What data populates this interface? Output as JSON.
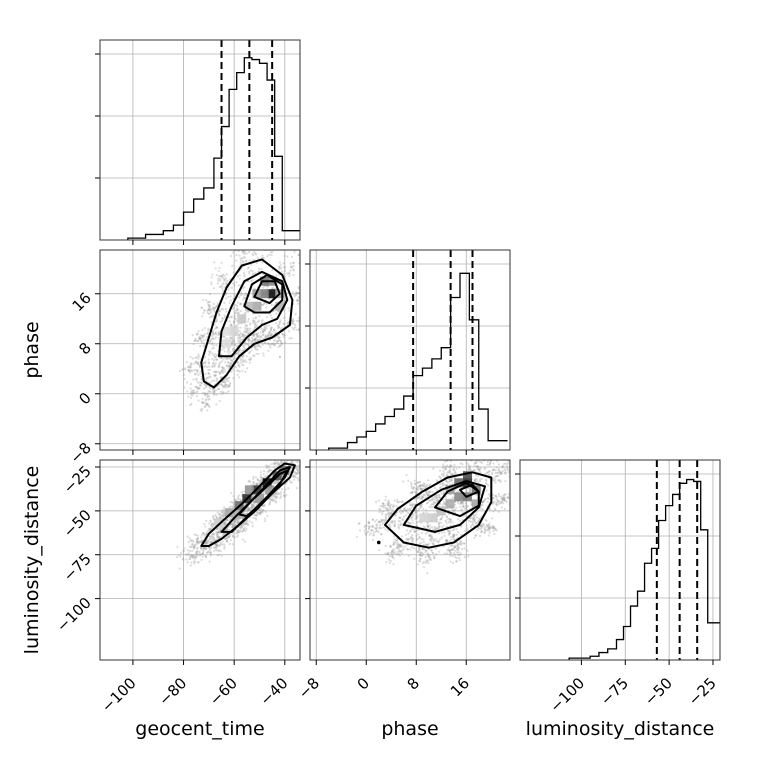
{
  "chart_data": {
    "type": "corner",
    "parameters": [
      {
        "key": "geocent_time",
        "label": "geocent_time",
        "range": [
          -113,
          -34
        ],
        "ticks": [
          -100,
          -80,
          -60,
          -40
        ],
        "tick_labels": [
          "−100",
          "−80",
          "−60",
          "−40"
        ],
        "quantiles": [
          -65,
          -54,
          -45
        ],
        "hist_y_max": 1.0,
        "hist_bins": [
          {
            "x0": -102,
            "x1": -95,
            "y": 0.01
          },
          {
            "x0": -95,
            "x1": -88,
            "y": 0.03
          },
          {
            "x0": -88,
            "x1": -84,
            "y": 0.05
          },
          {
            "x0": -84,
            "x1": -80,
            "y": 0.08
          },
          {
            "x0": -80,
            "x1": -76,
            "y": 0.15
          },
          {
            "x0": -76,
            "x1": -72,
            "y": 0.22
          },
          {
            "x0": -72,
            "x1": -68,
            "y": 0.28
          },
          {
            "x0": -68,
            "x1": -65,
            "y": 0.44
          },
          {
            "x0": -65,
            "x1": -62,
            "y": 0.61
          },
          {
            "x0": -62,
            "x1": -59,
            "y": 0.81
          },
          {
            "x0": -59,
            "x1": -56,
            "y": 0.9
          },
          {
            "x0": -56,
            "x1": -53,
            "y": 0.98
          },
          {
            "x0": -53,
            "x1": -50,
            "y": 0.97
          },
          {
            "x0": -50,
            "x1": -47,
            "y": 0.95
          },
          {
            "x0": -47,
            "x1": -44,
            "y": 0.86
          },
          {
            "x0": -44,
            "x1": -41,
            "y": 0.45
          },
          {
            "x0": -41,
            "x1": -37,
            "y": 0.05
          }
        ]
      },
      {
        "key": "phase",
        "label": "phase",
        "range": [
          -9,
          23
        ],
        "ticks": [
          -8,
          0,
          8,
          16
        ],
        "tick_labels": [
          "−8",
          "0",
          "8",
          "16"
        ],
        "quantiles": [
          7.5,
          13.5,
          17
        ],
        "hist_y_max": 1.0,
        "hist_bins": [
          {
            "x0": -6,
            "x1": -3,
            "y": 0.01
          },
          {
            "x0": -3,
            "x1": -1.5,
            "y": 0.04
          },
          {
            "x0": -1.5,
            "x1": 0,
            "y": 0.07
          },
          {
            "x0": 0,
            "x1": 1.5,
            "y": 0.1
          },
          {
            "x0": 1.5,
            "x1": 3,
            "y": 0.14
          },
          {
            "x0": 3,
            "x1": 4.5,
            "y": 0.18
          },
          {
            "x0": 4.5,
            "x1": 6,
            "y": 0.22
          },
          {
            "x0": 6,
            "x1": 7.5,
            "y": 0.29
          },
          {
            "x0": 7.5,
            "x1": 9,
            "y": 0.4
          },
          {
            "x0": 9,
            "x1": 10.5,
            "y": 0.44
          },
          {
            "x0": 10.5,
            "x1": 12,
            "y": 0.49
          },
          {
            "x0": 12,
            "x1": 13.5,
            "y": 0.55
          },
          {
            "x0": 13.5,
            "x1": 15,
            "y": 0.82
          },
          {
            "x0": 15,
            "x1": 16.5,
            "y": 0.95
          },
          {
            "x0": 16.5,
            "x1": 18,
            "y": 0.7
          },
          {
            "x0": 18,
            "x1": 19.5,
            "y": 0.22
          },
          {
            "x0": 19.5,
            "x1": 21,
            "y": 0.05
          }
        ]
      },
      {
        "key": "luminosity_distance",
        "label": "luminosity_distance",
        "range": [
          -135,
          -21
        ],
        "ticks": [
          -100,
          -75,
          -50,
          -25
        ],
        "tick_labels": [
          "−100",
          "−75",
          "−50",
          "−25"
        ],
        "quantiles": [
          -57,
          -44,
          -34
        ],
        "hist_y_max": 1.0,
        "hist_bins": [
          {
            "x0": -107,
            "x1": -95,
            "y": 0.01
          },
          {
            "x0": -95,
            "x1": -90,
            "y": 0.02
          },
          {
            "x0": -90,
            "x1": -85,
            "y": 0.04
          },
          {
            "x0": -85,
            "x1": -80,
            "y": 0.06
          },
          {
            "x0": -80,
            "x1": -76,
            "y": 0.11
          },
          {
            "x0": -76,
            "x1": -72,
            "y": 0.18
          },
          {
            "x0": -72,
            "x1": -68,
            "y": 0.29
          },
          {
            "x0": -68,
            "x1": -64,
            "y": 0.37
          },
          {
            "x0": -64,
            "x1": -60,
            "y": 0.52
          },
          {
            "x0": -60,
            "x1": -56,
            "y": 0.6
          },
          {
            "x0": -56,
            "x1": -52,
            "y": 0.75
          },
          {
            "x0": -52,
            "x1": -48,
            "y": 0.83
          },
          {
            "x0": -48,
            "x1": -44,
            "y": 0.89
          },
          {
            "x0": -44,
            "x1": -40,
            "y": 0.95
          },
          {
            "x0": -40,
            "x1": -36,
            "y": 0.97
          },
          {
            "x0": -36,
            "x1": -32,
            "y": 0.96
          },
          {
            "x0": -32,
            "x1": -28,
            "y": 0.7
          },
          {
            "x0": -28,
            "x1": -24,
            "y": 0.2
          }
        ]
      }
    ],
    "scatter_color": "#9a9a9a",
    "line_color": "#000000",
    "grid": true,
    "pairs": [
      {
        "x": "geocent_time",
        "y": "phase",
        "contours": [
          [
            [
              -72,
              2
            ],
            [
              -73,
              5
            ],
            [
              -70,
              9
            ],
            [
              -67,
              13
            ],
            [
              -63,
              17
            ],
            [
              -57,
              20.5
            ],
            [
              -49,
              21.5
            ],
            [
              -41,
              19
            ],
            [
              -37,
              15
            ],
            [
              -38,
              11
            ],
            [
              -45,
              9
            ],
            [
              -52,
              8
            ],
            [
              -58,
              6
            ],
            [
              -63,
              3
            ],
            [
              -68,
              1
            ]
          ],
          [
            [
              -66,
              6
            ],
            [
              -65,
              10
            ],
            [
              -61,
              14
            ],
            [
              -56,
              18
            ],
            [
              -49,
              19.5
            ],
            [
              -41,
              18
            ],
            [
              -39,
              15
            ],
            [
              -43,
              12
            ],
            [
              -49,
              11
            ],
            [
              -55,
              9
            ],
            [
              -61,
              6
            ]
          ],
          [
            [
              -56,
              14
            ],
            [
              -53,
              17.5
            ],
            [
              -47,
              19
            ],
            [
              -41,
              17.5
            ],
            [
              -41,
              15
            ],
            [
              -46,
              13
            ],
            [
              -52,
              13
            ]
          ],
          [
            [
              -52,
              15.5
            ],
            [
              -49,
              18
            ],
            [
              -44,
              18
            ],
            [
              -42,
              16
            ],
            [
              -46,
              14.5
            ]
          ]
        ],
        "density_cells": [
          {
            "x": -45,
            "y": 16,
            "v": 1.0
          },
          {
            "x": -48,
            "y": 16,
            "v": 0.5
          },
          {
            "x": -48,
            "y": 18,
            "v": 0.55
          },
          {
            "x": -45,
            "y": 18,
            "v": 0.45
          },
          {
            "x": -51,
            "y": 16,
            "v": 0.35
          },
          {
            "x": -51,
            "y": 14,
            "v": 0.3
          },
          {
            "x": -54,
            "y": 14,
            "v": 0.22
          },
          {
            "x": -57,
            "y": 12,
            "v": 0.16
          },
          {
            "x": -60,
            "y": 10,
            "v": 0.1
          },
          {
            "x": -63,
            "y": 8,
            "v": 0.06
          },
          {
            "x": -63,
            "y": 10,
            "v": 0.06
          },
          {
            "x": -42,
            "y": 14,
            "v": 0.25
          },
          {
            "x": -42,
            "y": 16,
            "v": 0.3
          }
        ]
      },
      {
        "x": "geocent_time",
        "y": "luminosity_distance",
        "contours": [
          [
            [
              -73,
              -70
            ],
            [
              -70,
              -63
            ],
            [
              -64,
              -55
            ],
            [
              -57,
              -46
            ],
            [
              -50,
              -36
            ],
            [
              -44,
              -27
            ],
            [
              -40,
              -23
            ],
            [
              -36,
              -24
            ],
            [
              -38,
              -31
            ],
            [
              -45,
              -40
            ],
            [
              -51,
              -49
            ],
            [
              -58,
              -58
            ],
            [
              -65,
              -66
            ],
            [
              -70,
              -70
            ]
          ],
          [
            [
              -65,
              -62
            ],
            [
              -60,
              -54
            ],
            [
              -53,
              -44
            ],
            [
              -47,
              -35
            ],
            [
              -42,
              -27
            ],
            [
              -38,
              -25
            ],
            [
              -40,
              -31
            ],
            [
              -47,
              -42
            ],
            [
              -54,
              -52
            ],
            [
              -61,
              -62
            ]
          ],
          [
            [
              -58,
              -52
            ],
            [
              -53,
              -44
            ],
            [
              -47,
              -36
            ],
            [
              -42,
              -29
            ],
            [
              -39,
              -27
            ],
            [
              -42,
              -35
            ],
            [
              -48,
              -44
            ],
            [
              -55,
              -53
            ]
          ]
        ],
        "density_cells": [
          {
            "x": -47,
            "y": -34,
            "v": 1.0
          },
          {
            "x": -51,
            "y": -38,
            "v": 0.8
          },
          {
            "x": -55,
            "y": -43,
            "v": 0.85
          },
          {
            "x": -43,
            "y": -30,
            "v": 0.7
          },
          {
            "x": -40,
            "y": -27,
            "v": 0.55
          },
          {
            "x": -58,
            "y": -47,
            "v": 0.55
          },
          {
            "x": -62,
            "y": -51,
            "v": 0.3
          },
          {
            "x": -54,
            "y": -38,
            "v": 0.4
          },
          {
            "x": -50,
            "y": -43,
            "v": 0.35
          },
          {
            "x": -46,
            "y": -38,
            "v": 0.35
          },
          {
            "x": -58,
            "y": -52,
            "v": 0.25
          },
          {
            "x": -66,
            "y": -57,
            "v": 0.12
          }
        ]
      },
      {
        "x": "phase",
        "y": "luminosity_distance",
        "contours": [
          [
            [
              6,
              -68
            ],
            [
              3,
              -58
            ],
            [
              5,
              -49
            ],
            [
              9,
              -39
            ],
            [
              13,
              -31
            ],
            [
              17,
              -28
            ],
            [
              20,
              -31
            ],
            [
              20,
              -45
            ],
            [
              18,
              -58
            ],
            [
              14,
              -68
            ],
            [
              10,
              -71
            ]
          ],
          [
            [
              6,
              -58
            ],
            [
              8,
              -47
            ],
            [
              12,
              -38
            ],
            [
              16,
              -33
            ],
            [
              19,
              -36
            ],
            [
              18,
              -48
            ],
            [
              15,
              -58
            ],
            [
              11,
              -62
            ]
          ],
          [
            [
              11,
              -48
            ],
            [
              13,
              -39
            ],
            [
              16,
              -34
            ],
            [
              18,
              -39
            ],
            [
              18,
              -47
            ],
            [
              15,
              -53
            ]
          ],
          [
            [
              15,
              -38
            ],
            [
              17,
              -35
            ],
            [
              18,
              -39
            ],
            [
              16,
              -42
            ]
          ]
        ],
        "density_cells": [
          {
            "x": 16.2,
            "y": -34,
            "v": 0.9
          },
          {
            "x": 16.2,
            "y": -30,
            "v": 0.7
          },
          {
            "x": 14.8,
            "y": -34,
            "v": 0.6
          },
          {
            "x": 17.6,
            "y": -38,
            "v": 0.55
          },
          {
            "x": 14.8,
            "y": -42,
            "v": 0.45
          },
          {
            "x": 16.2,
            "y": -42,
            "v": 0.5
          },
          {
            "x": 13.4,
            "y": -38,
            "v": 0.35
          },
          {
            "x": 13.4,
            "y": -46,
            "v": 0.28
          },
          {
            "x": 12,
            "y": -50,
            "v": 0.2
          },
          {
            "x": 10.6,
            "y": -54,
            "v": 0.14
          },
          {
            "x": 9.2,
            "y": -54,
            "v": 0.1
          },
          {
            "x": 17.6,
            "y": -46,
            "v": 0.3
          }
        ],
        "marker": {
          "x": 2,
          "y": -68
        }
      }
    ]
  }
}
